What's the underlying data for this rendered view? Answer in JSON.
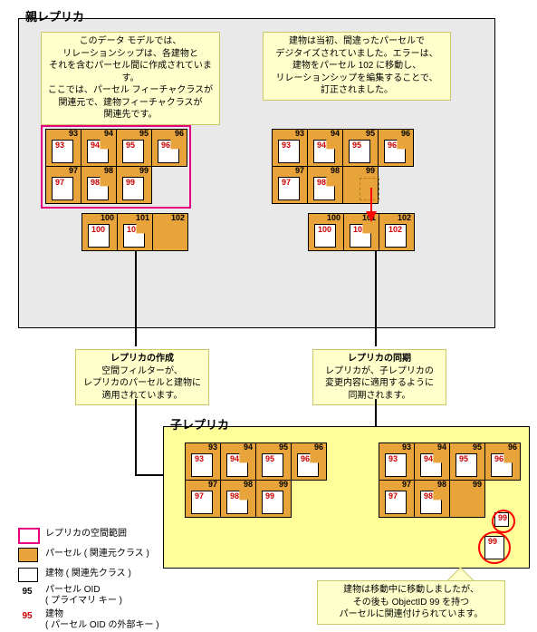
{
  "titles": {
    "parent": "親レプリカ",
    "child": "子レプリカ"
  },
  "notes": {
    "n1": "このデータ モデルでは、\nリレーションシップは、各建物と\nそれを含むパーセル間に作成されています。\nここでは、パーセル フィーチャクラスが\n関連元で、建物フィーチャクラスが\n関連先です。",
    "n2": "建物は当初、間違ったパーセルで\nデジタイズされていました。エラーは、\n建物をパーセル 102 に移動し、\nリレーションシップを編集することで、\n訂正されました。",
    "n3": "レプリカの作成\n空間フィルターが、\nレプリカのパーセルと建物に\n適用されています。",
    "n4": "レプリカの同期\nレプリカが、子レプリカの\n変更内容に適用するように\n同期されます。",
    "n5": "建物は移動中に移動しましたが、\nその後も ObjectID 99 を持つ\nパーセルに関連付けられています。"
  },
  "legend": {
    "extent": "レプリカの空間範囲",
    "parcel": "パーセル ( 関連元クラス )",
    "building": "建物 ( 関連先クラス )",
    "parcelOID": "パーセル OID\n( プライマリ キー )",
    "buildingOID": "建物\n( パーセル OID の外部キー )"
  },
  "legendSample": {
    "parcelNum": "95",
    "buildingNum": "95"
  },
  "colors": {
    "parentBg": "#e9e9e9",
    "childBg": "#ffff99",
    "noteBg": "#ffffcc",
    "parcelFill": "#e8a43a",
    "arrow": "#000",
    "redArrow": "#f00",
    "extent": "#e6007e",
    "parcelOIDText": "#000",
    "buildingOIDText": "#c00"
  },
  "parcelsTop": [
    {
      "oid": "93",
      "boid": "93"
    },
    {
      "oid": "94",
      "boid": "94"
    },
    {
      "oid": "95",
      "boid": "95"
    },
    {
      "oid": "96",
      "boid": "96"
    },
    {
      "oid": "97",
      "boid": "97"
    },
    {
      "oid": "98",
      "boid": "98"
    },
    {
      "oid": "99",
      "boid": "99"
    }
  ],
  "parcelsBottom": [
    {
      "oid": "100",
      "boid": "100"
    },
    {
      "oid": "101",
      "boid": "101"
    },
    {
      "oid": "102",
      "boid": ""
    }
  ],
  "movedBuilding": "102",
  "childExtra": {
    "detachedBoid": "99",
    "floatingBoid": "99"
  }
}
